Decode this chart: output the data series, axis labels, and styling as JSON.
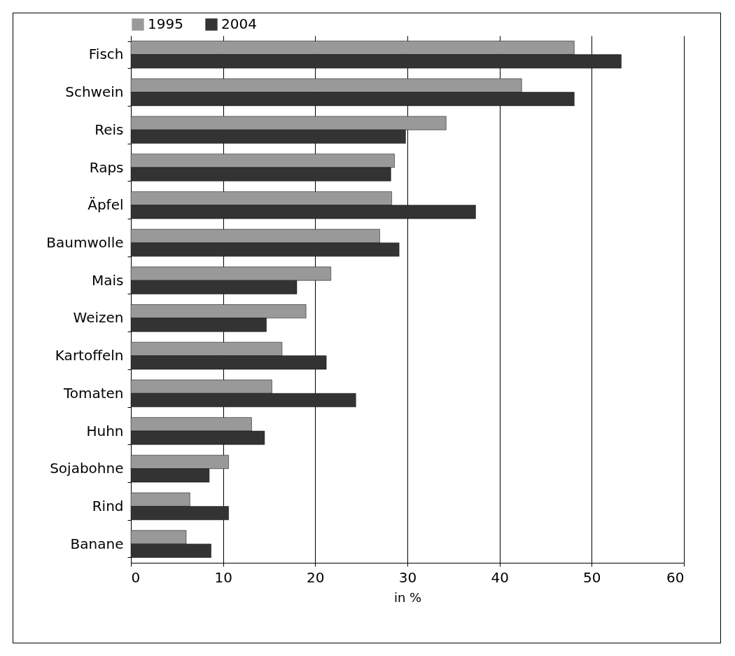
{
  "chart_data": {
    "type": "bar",
    "orientation": "horizontal",
    "xlabel": "in %",
    "categories": [
      "Fisch",
      "Schwein",
      "Reis",
      "Raps",
      "Äpfel",
      "Baumwolle",
      "Mais",
      "Weizen",
      "Kartoffeln",
      "Tomaten",
      "Huhn",
      "Sojabohne",
      "Rind",
      "Banane"
    ],
    "series": [
      {
        "name": "1995",
        "color": "#999999",
        "values": [
          48.1,
          42.4,
          34.2,
          28.6,
          28.3,
          27.0,
          21.7,
          19.0,
          16.4,
          15.3,
          13.1,
          10.6,
          6.4,
          6.0
        ]
      },
      {
        "name": "2004",
        "color": "#333333",
        "values": [
          53.2,
          48.1,
          29.8,
          28.2,
          37.4,
          29.1,
          18.0,
          14.7,
          21.2,
          24.4,
          14.5,
          8.5,
          10.6,
          8.7
        ]
      }
    ],
    "xlim": [
      0,
      60
    ],
    "xticks": [
      0,
      10,
      20,
      30,
      40,
      50,
      60
    ],
    "grid": "x",
    "legend": "top left"
  }
}
